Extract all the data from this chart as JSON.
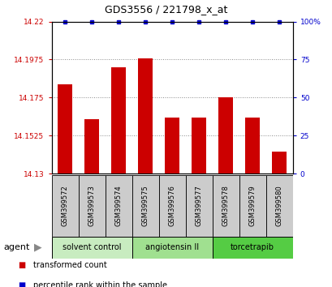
{
  "title": "GDS3556 / 221798_x_at",
  "samples": [
    "GSM399572",
    "GSM399573",
    "GSM399574",
    "GSM399575",
    "GSM399576",
    "GSM399577",
    "GSM399578",
    "GSM399579",
    "GSM399580"
  ],
  "bar_values": [
    14.183,
    14.162,
    14.193,
    14.198,
    14.163,
    14.163,
    14.175,
    14.163,
    14.143
  ],
  "percentile_values": [
    100,
    100,
    100,
    100,
    100,
    100,
    100,
    100,
    100
  ],
  "bar_color": "#cc0000",
  "dot_color": "#0000cc",
  "ylim_left": [
    14.13,
    14.22
  ],
  "ylim_right": [
    0,
    100
  ],
  "yticks_left": [
    14.13,
    14.1525,
    14.175,
    14.1975,
    14.22
  ],
  "ytick_labels_left": [
    "14.13",
    "14.1525",
    "14.175",
    "14.1975",
    "14.22"
  ],
  "yticks_right": [
    0,
    25,
    50,
    75,
    100
  ],
  "ytick_labels_right": [
    "0",
    "25",
    "50",
    "75",
    "100%"
  ],
  "groups": [
    {
      "label": "solvent control",
      "start": 0,
      "end": 3,
      "color": "#c8ecc0"
    },
    {
      "label": "angiotensin II",
      "start": 3,
      "end": 6,
      "color": "#a0e090"
    },
    {
      "label": "torcetrapib",
      "start": 6,
      "end": 9,
      "color": "#55cc44"
    }
  ],
  "agent_label": "agent",
  "legend_items": [
    {
      "color": "#cc0000",
      "label": "transformed count"
    },
    {
      "color": "#0000cc",
      "label": "percentile rank within the sample"
    }
  ],
  "bar_width": 0.55,
  "tick_color_left": "#cc0000",
  "tick_color_right": "#0000cc",
  "sample_box_color": "#cccccc",
  "figsize": [
    4.1,
    3.54
  ],
  "dpi": 100
}
